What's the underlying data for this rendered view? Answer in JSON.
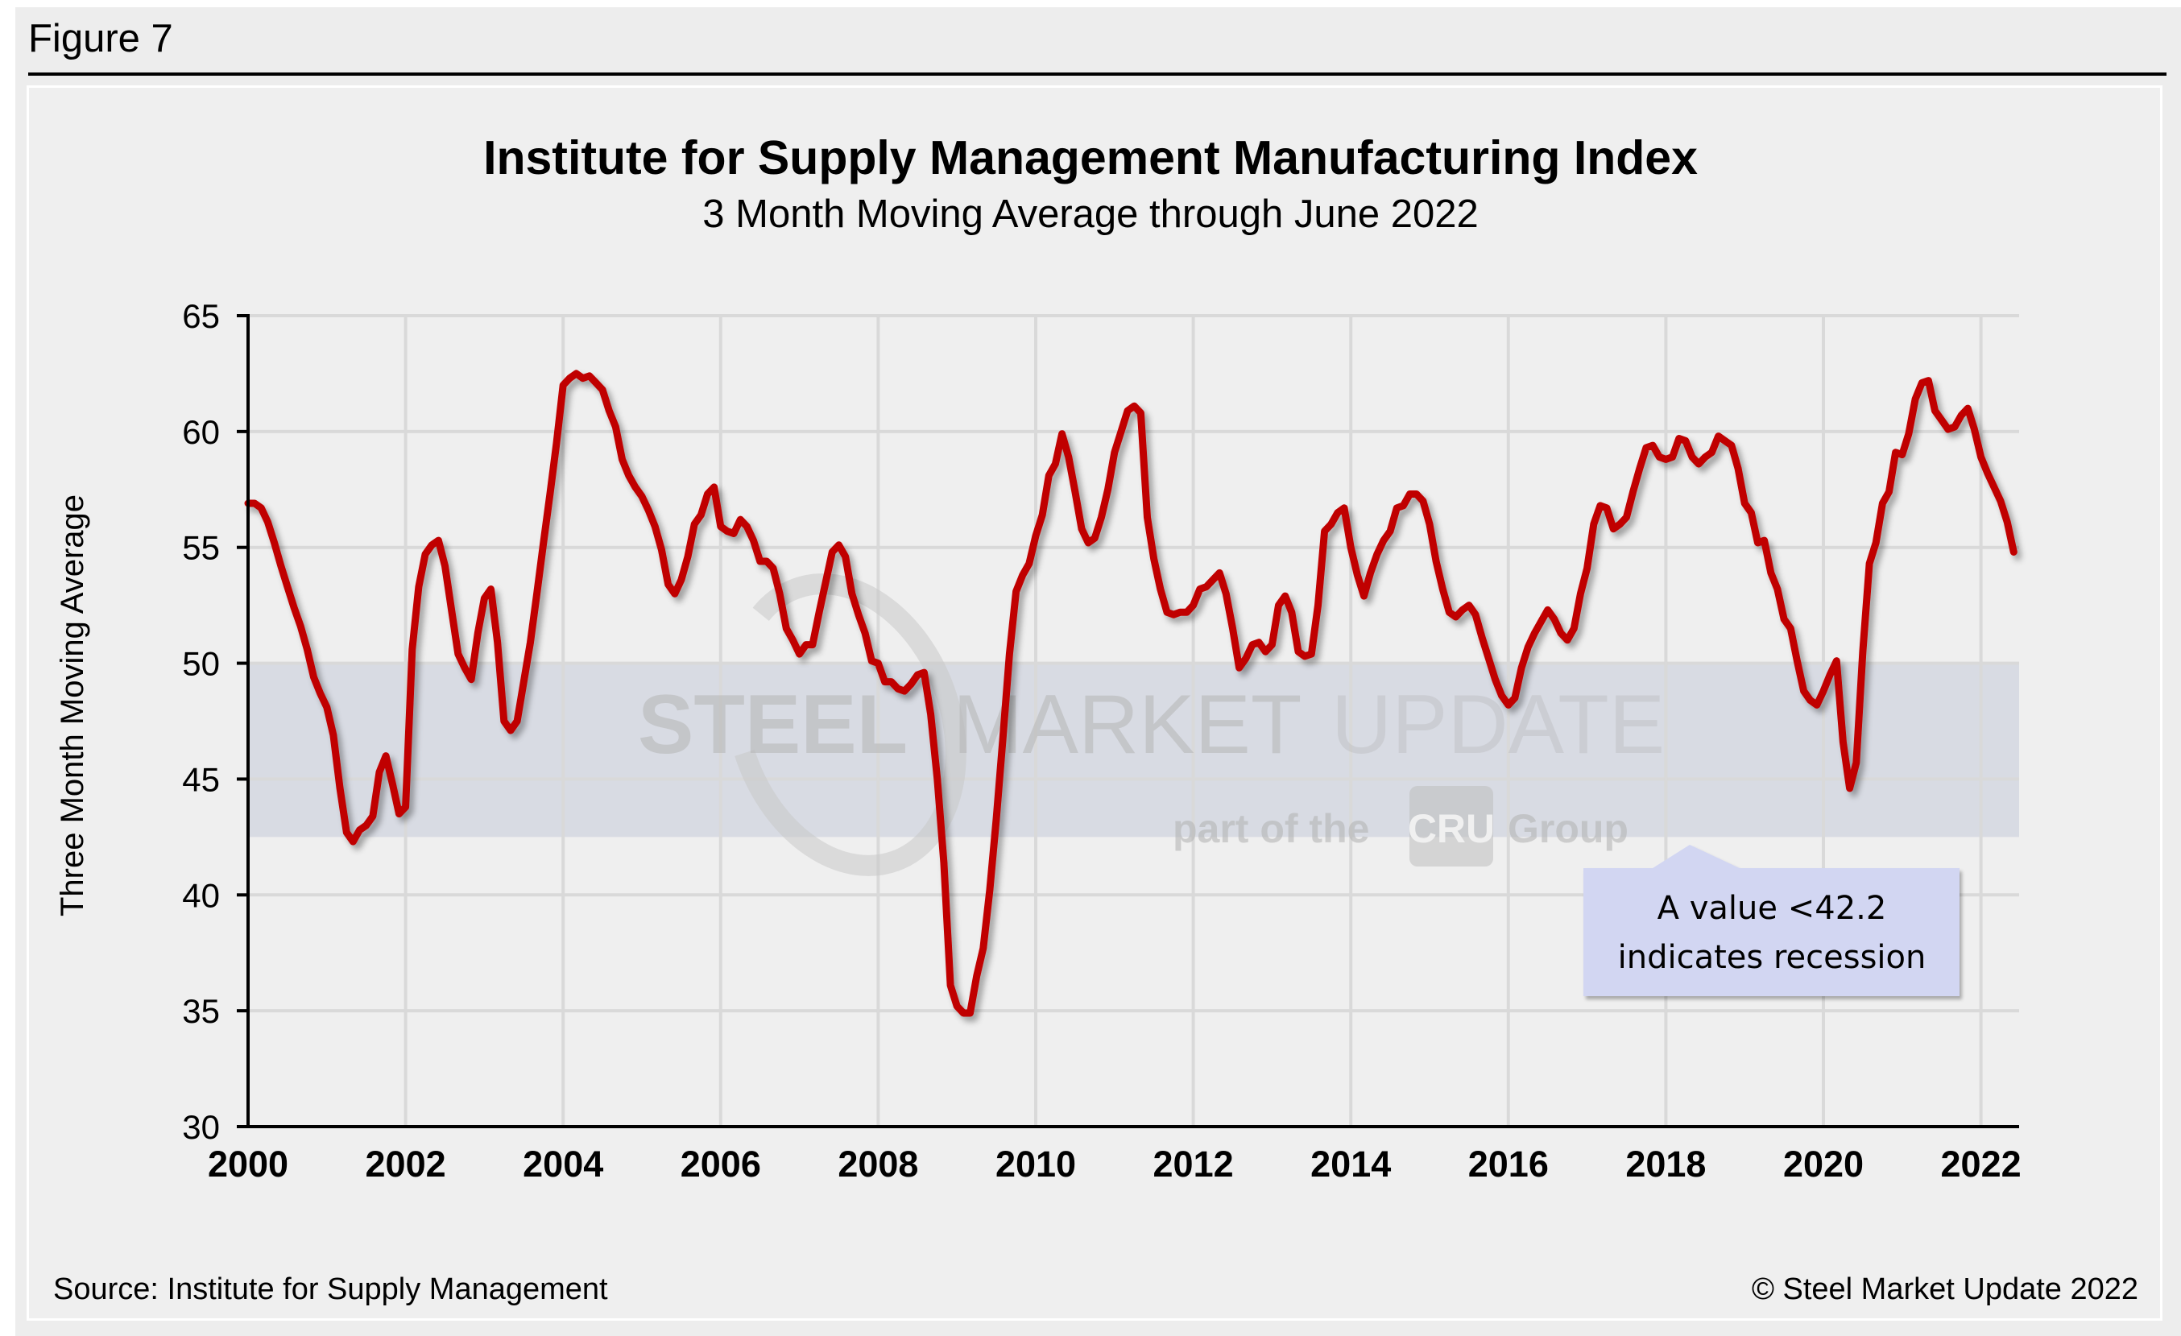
{
  "figure_label": "Figure 7",
  "footer": {
    "source": "Source: Institute for Supply Management",
    "copyright": "© Steel Market Update 2022"
  },
  "watermark": {
    "word1": "STEEL",
    "word2": "MARKET",
    "word3": "UPDATE",
    "tagline_prefix": "part of the",
    "tagline_logo": "CRU",
    "tagline_suffix": "Group"
  },
  "colors": {
    "series": "#c00000",
    "recession_band": "#d8dbe3",
    "callout_fill": "#d2d6f2",
    "gridline": "#d9d9d9"
  },
  "chart_data": {
    "type": "line",
    "title": "Institute for Supply Management Manufacturing Index",
    "subtitle": "3 Month Moving Average through June 2022",
    "xlabel": "",
    "ylabel": "Three Month Moving Average",
    "ylim": [
      30,
      65
    ],
    "yticks": [
      "30",
      "35",
      "40",
      "45",
      "50",
      "55",
      "60",
      "65"
    ],
    "xlim": [
      "2000-01",
      "2022-06"
    ],
    "xticks": [
      "2000",
      "2002",
      "2004",
      "2006",
      "2008",
      "2010",
      "2012",
      "2014",
      "2016",
      "2018",
      "2020",
      "2022"
    ],
    "grid": true,
    "legend": "none",
    "start_month": "2000-01",
    "frequency": "monthly",
    "series": [
      {
        "name": "ISM Manufacturing Index (3-month moving average)",
        "values": [
          56.9,
          56.9,
          56.7,
          56.1,
          55.2,
          54.2,
          53.3,
          52.4,
          51.6,
          50.6,
          49.4,
          48.7,
          48.1,
          46.9,
          44.6,
          42.7,
          42.3,
          42.8,
          43.0,
          43.4,
          45.3,
          46.0,
          44.8,
          43.5,
          43.8,
          50.6,
          53.3,
          54.7,
          55.1,
          55.3,
          54.2,
          52.3,
          50.4,
          49.8,
          49.3,
          51.3,
          52.8,
          53.2,
          50.9,
          47.5,
          47.1,
          47.5,
          49.2,
          50.9,
          53.0,
          55.2,
          57.3,
          59.5,
          62.0,
          62.3,
          62.5,
          62.3,
          62.4,
          62.1,
          61.8,
          60.9,
          60.2,
          58.8,
          58.1,
          57.6,
          57.2,
          56.6,
          55.9,
          54.9,
          53.4,
          53.0,
          53.6,
          54.6,
          56.0,
          56.4,
          57.3,
          57.6,
          55.9,
          55.7,
          55.6,
          56.2,
          55.9,
          55.3,
          54.4,
          54.4,
          54.1,
          53.0,
          51.5,
          51.0,
          50.4,
          50.8,
          50.8,
          52.2,
          53.5,
          54.8,
          55.1,
          54.6,
          53.0,
          52.1,
          51.3,
          50.1,
          50.0,
          49.2,
          49.2,
          48.9,
          48.8,
          49.1,
          49.5,
          49.6,
          47.8,
          45.0,
          41.4,
          36.1,
          35.2,
          34.9,
          34.9,
          36.5,
          37.7,
          40.2,
          43.3,
          46.8,
          50.4,
          53.1,
          53.8,
          54.3,
          55.5,
          56.4,
          58.1,
          58.6,
          59.9,
          58.9,
          57.4,
          55.8,
          55.2,
          55.4,
          56.3,
          57.5,
          59.1,
          60.0,
          60.9,
          61.1,
          60.8,
          56.3,
          54.5,
          53.2,
          52.2,
          52.1,
          52.2,
          52.2,
          52.5,
          53.2,
          53.3,
          53.6,
          53.9,
          53.0,
          51.5,
          49.8,
          50.2,
          50.8,
          50.9,
          50.5,
          50.8,
          52.5,
          52.9,
          52.2,
          50.5,
          50.3,
          50.4,
          52.5,
          55.7,
          56.0,
          56.5,
          56.7,
          55.0,
          53.8,
          52.9,
          53.9,
          54.7,
          55.3,
          55.7,
          56.7,
          56.8,
          57.3,
          57.3,
          57.0,
          56.0,
          54.4,
          53.2,
          52.2,
          52.0,
          52.3,
          52.5,
          52.1,
          51.1,
          50.2,
          49.3,
          48.6,
          48.2,
          48.5,
          49.8,
          50.7,
          51.3,
          51.8,
          52.3,
          51.9,
          51.3,
          51.0,
          51.5,
          53.0,
          54.1,
          56.0,
          56.8,
          56.7,
          55.8,
          56.0,
          56.3,
          57.4,
          58.4,
          59.3,
          59.4,
          58.9,
          58.8,
          58.9,
          59.7,
          59.6,
          58.9,
          58.6,
          58.9,
          59.1,
          59.8,
          59.6,
          59.4,
          58.4,
          56.9,
          56.5,
          55.2,
          55.3,
          53.9,
          53.2,
          51.9,
          51.5,
          50.1,
          48.8,
          48.4,
          48.2,
          48.8,
          49.5,
          50.1,
          46.6,
          44.6,
          45.7,
          50.5,
          54.3,
          55.2,
          56.9,
          57.4,
          59.1,
          59.0,
          59.9,
          61.4,
          62.1,
          62.2,
          60.9,
          60.5,
          60.1,
          60.2,
          60.7,
          61.0,
          60.1,
          58.9,
          58.2,
          57.6,
          57.0,
          56.1,
          54.8
        ]
      }
    ],
    "shaded_band": {
      "from": 42.5,
      "to": 50
    },
    "annotations": [
      {
        "text_line1": "A value <42.2",
        "text_line2": "indicates recession",
        "points_to": "2018"
      }
    ]
  }
}
